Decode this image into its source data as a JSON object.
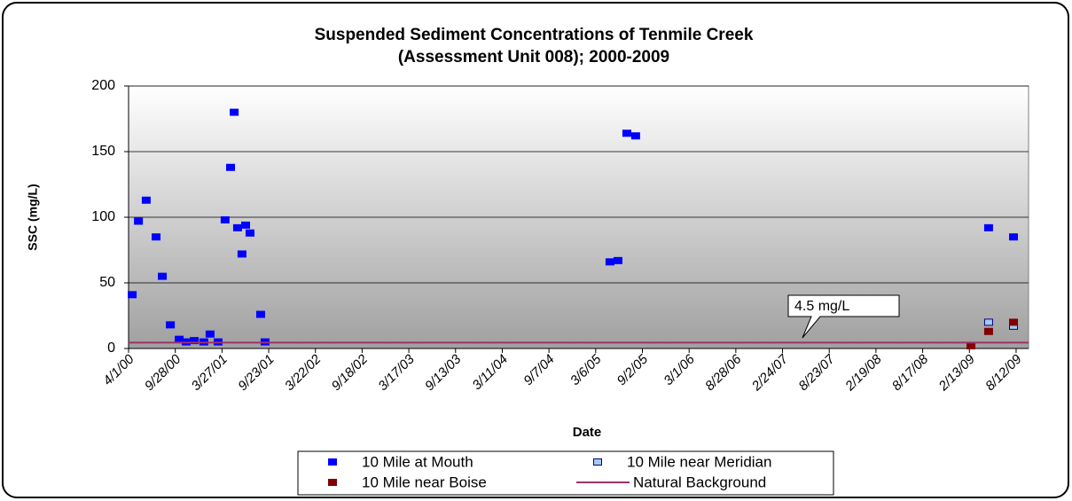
{
  "chart_data": {
    "type": "scatter",
    "title": "Suspended Sediment Concentrations of Tenmile Creek",
    "subtitle": "(Assessment Unit 008); 2000-2009",
    "x_label": "Date",
    "y_label": "SSC (mg/L)",
    "annotation": "4.5 mg/L",
    "xlim": [
      "2000-04-01",
      "2009-09-29"
    ],
    "xticks": [
      {
        "value": "2000-04-01",
        "label": "4/1/00"
      },
      {
        "value": "2000-09-28",
        "label": "9/28/00"
      },
      {
        "value": "2001-03-27",
        "label": "3/27/01"
      },
      {
        "value": "2001-09-23",
        "label": "9/23/01"
      },
      {
        "value": "2002-03-22",
        "label": "3/22/02"
      },
      {
        "value": "2002-09-18",
        "label": "9/18/02"
      },
      {
        "value": "2003-03-17",
        "label": "3/17/03"
      },
      {
        "value": "2003-09-13",
        "label": "9/13/03"
      },
      {
        "value": "2004-03-11",
        "label": "3/11/04"
      },
      {
        "value": "2004-09-07",
        "label": "9/7/04"
      },
      {
        "value": "2005-03-06",
        "label": "3/6/05"
      },
      {
        "value": "2005-09-02",
        "label": "9/2/05"
      },
      {
        "value": "2006-03-01",
        "label": "3/1/06"
      },
      {
        "value": "2006-08-28",
        "label": "8/28/06"
      },
      {
        "value": "2007-02-24",
        "label": "2/24/07"
      },
      {
        "value": "2007-08-23",
        "label": "8/23/07"
      },
      {
        "value": "2008-02-19",
        "label": "2/19/08"
      },
      {
        "value": "2008-08-17",
        "label": "8/17/08"
      },
      {
        "value": "2009-02-13",
        "label": "2/13/09"
      },
      {
        "value": "2009-08-12",
        "label": "8/12/09"
      }
    ],
    "ylim": [
      0,
      200
    ],
    "yticks": [
      0,
      50,
      100,
      150,
      200
    ],
    "grid": true,
    "series": [
      {
        "name": "10 Mile at Mouth",
        "color": "#0000ff",
        "marker": "square",
        "x": [
          "2000-04-15",
          "2000-05-09",
          "2000-06-08",
          "2000-07-16",
          "2000-08-09",
          "2000-09-09",
          "2000-10-13",
          "2000-11-09",
          "2000-12-10",
          "2001-01-16",
          "2001-02-09",
          "2001-03-12",
          "2001-04-08",
          "2001-04-29",
          "2001-05-13",
          "2001-05-26",
          "2001-06-12",
          "2001-06-26",
          "2001-07-13",
          "2001-08-23",
          "2001-09-09",
          "2005-04-30",
          "2005-05-31",
          "2005-07-04",
          "2005-08-07",
          "2009-04-28",
          "2009-08-02"
        ],
        "values": [
          41,
          97,
          113,
          85,
          55,
          18,
          7,
          5,
          6,
          5,
          11,
          5,
          98,
          138,
          180,
          92,
          72,
          94,
          88,
          26,
          5,
          66,
          67,
          164,
          162,
          92,
          85
        ]
      },
      {
        "name": "10 Mile near Meridian",
        "color": "#a6caf0",
        "marker": "square",
        "x": [
          "2009-04-28",
          "2009-08-02"
        ],
        "values": [
          20,
          17
        ]
      },
      {
        "name": "10 Mile near Boise",
        "color": "#800000",
        "marker": "square",
        "x": [
          "2009-02-19",
          "2009-04-28",
          "2009-08-02"
        ],
        "values": [
          2,
          13,
          20
        ]
      },
      {
        "name": "Natural Background",
        "color": "#a0306a",
        "marker": "line",
        "x": [
          "2000-04-01",
          "2009-09-29"
        ],
        "values": [
          4.5,
          4.5
        ]
      }
    ]
  }
}
